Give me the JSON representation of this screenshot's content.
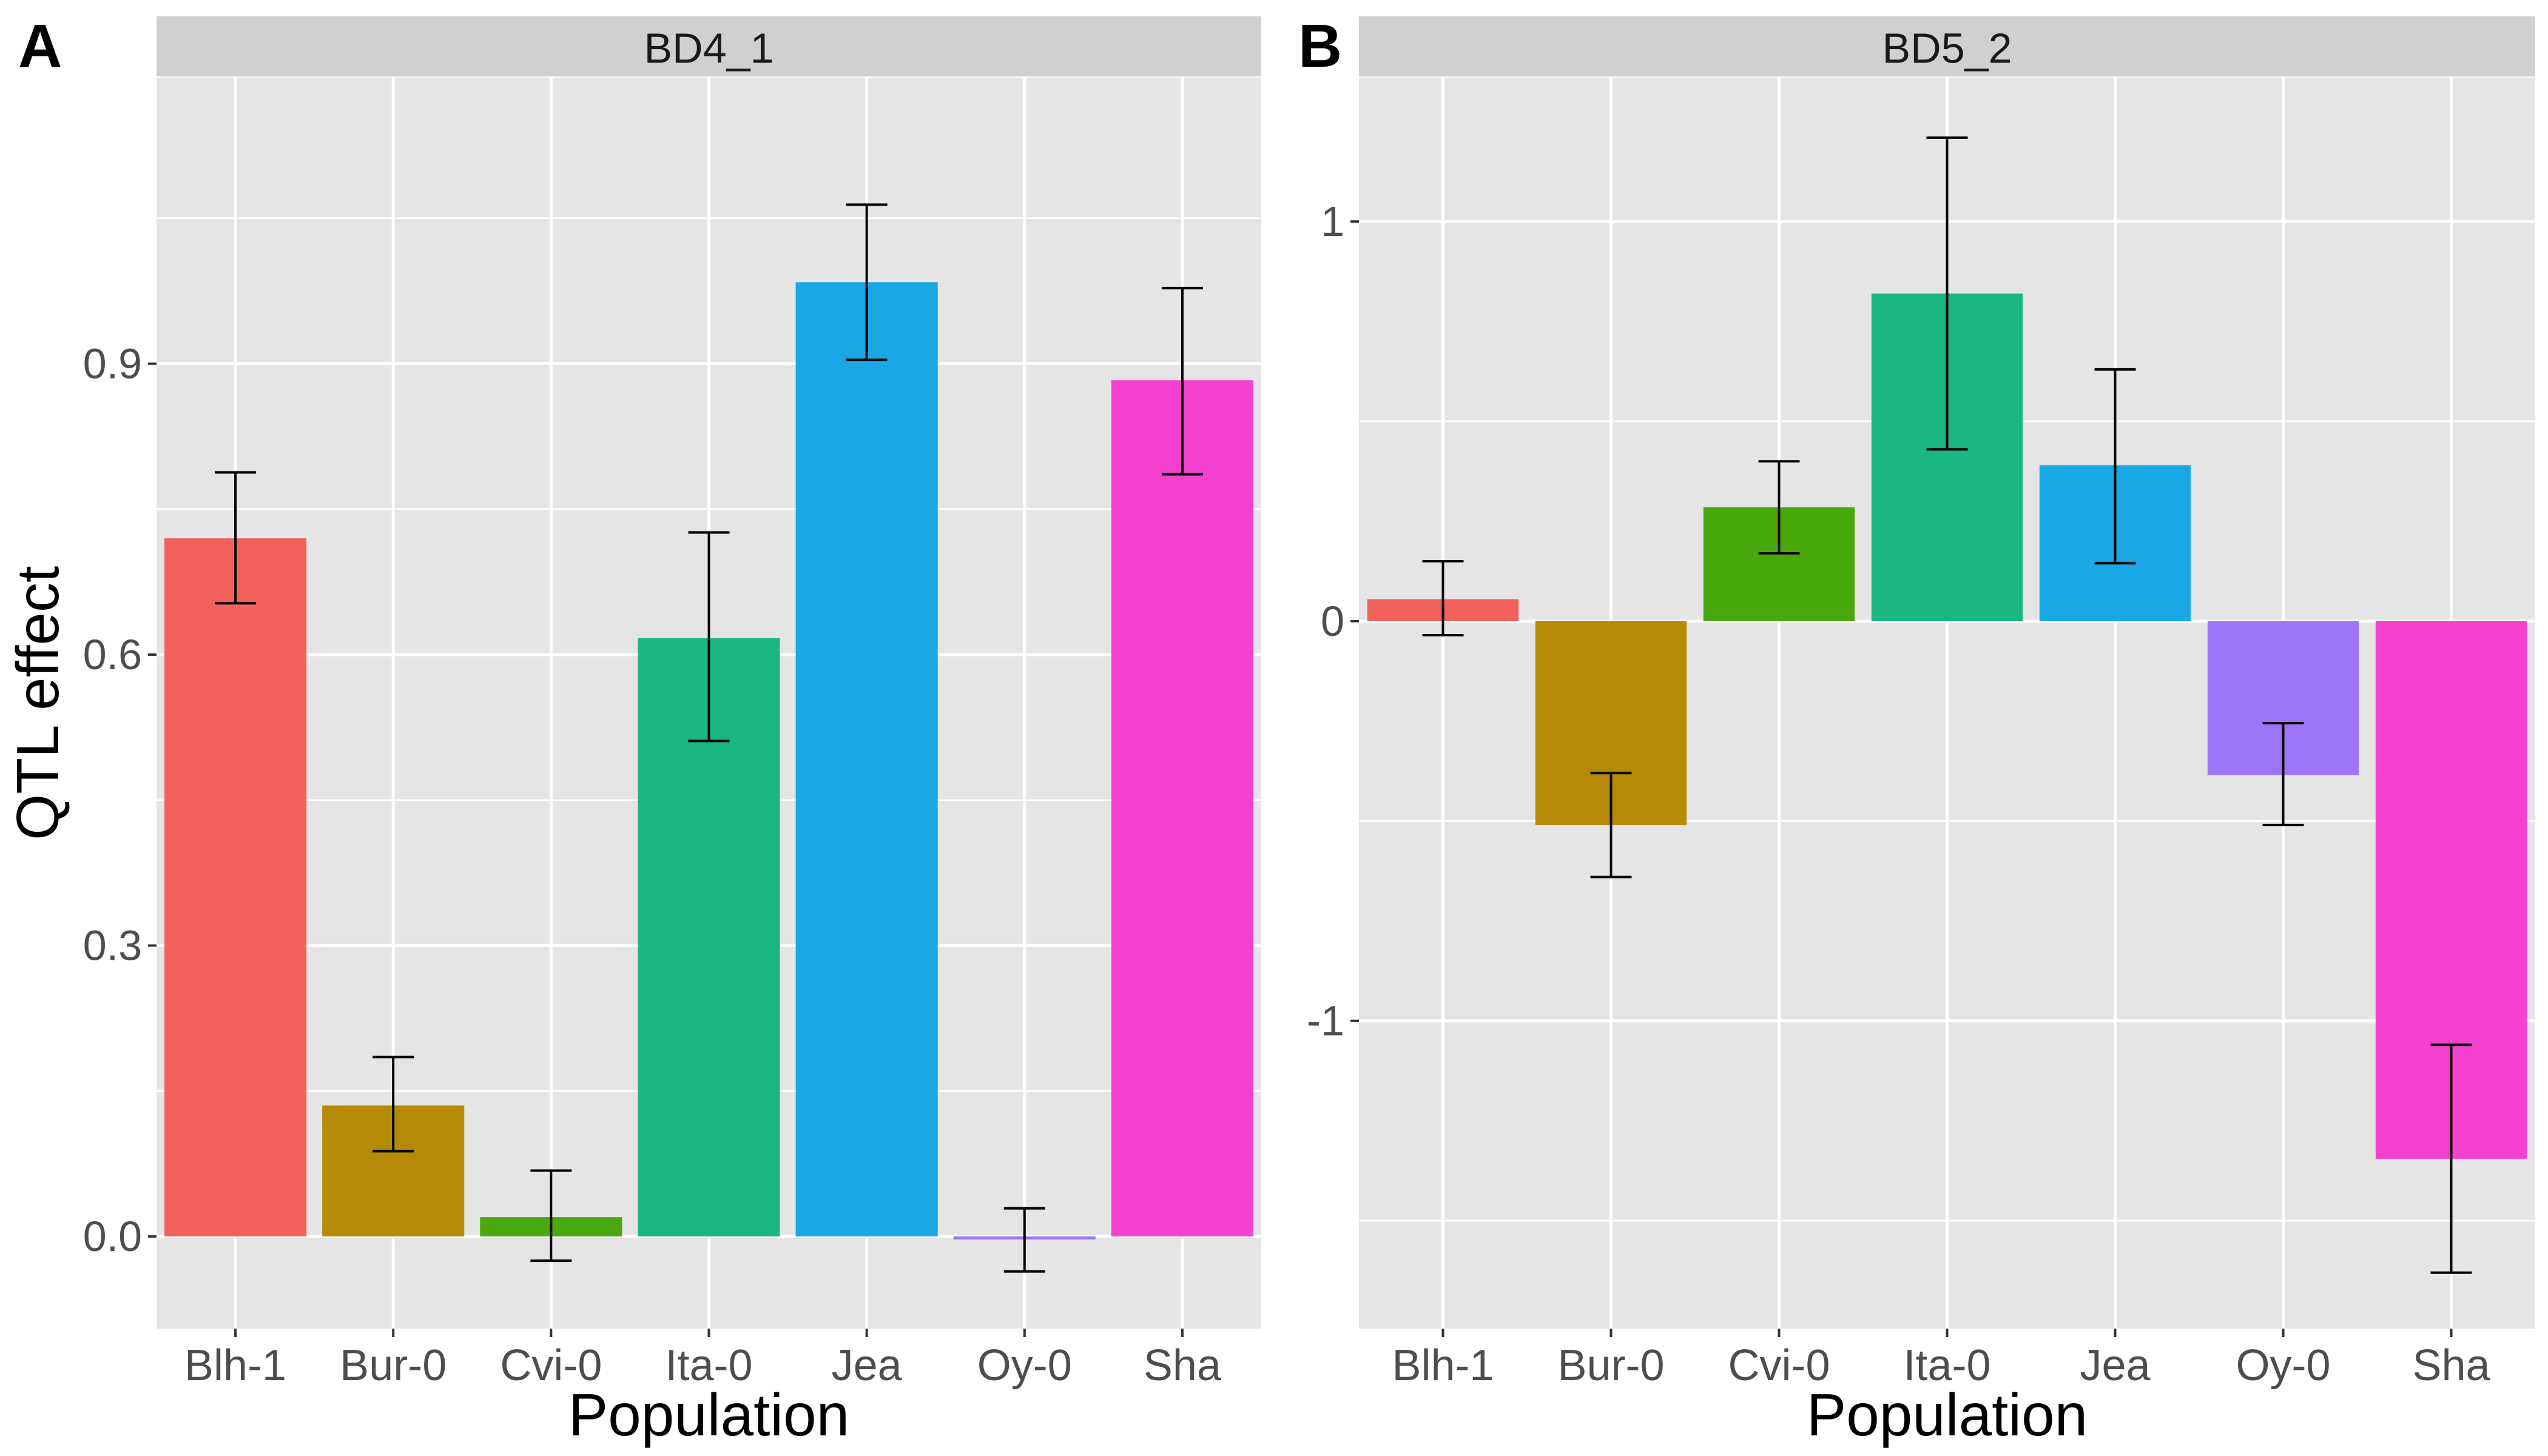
{
  "chart_data": [
    {
      "type": "bar",
      "panel_label": "A",
      "title": "BD4_1",
      "xlabel": "Population",
      "ylabel": "QTL effect",
      "ylim": [
        -0.095,
        1.195
      ],
      "yticks": [
        0.0,
        0.3,
        0.6,
        0.9
      ],
      "ytick_labels": [
        "0.0",
        "0.3",
        "0.6",
        "0.9"
      ],
      "categories": [
        "Blh-1",
        "Bur-0",
        "Cvi-0",
        "Ita-0",
        "Jea",
        "Oy-0",
        "Sha"
      ],
      "values": [
        0.72,
        0.135,
        0.02,
        0.617,
        0.984,
        -0.002,
        0.883
      ],
      "error_low": [
        0.653,
        0.088,
        -0.025,
        0.511,
        0.904,
        -0.036,
        0.786
      ],
      "error_high": [
        0.788,
        0.185,
        0.068,
        0.726,
        1.064,
        0.029,
        0.978
      ],
      "grid": true,
      "legend": "none"
    },
    {
      "type": "bar",
      "panel_label": "B",
      "title": "BD5_2",
      "xlabel": "Population",
      "ylabel": "",
      "ylim": [
        -1.77,
        1.36
      ],
      "yticks": [
        -1,
        0,
        1
      ],
      "ytick_labels": [
        "-1",
        "0",
        "1"
      ],
      "categories": [
        "Blh-1",
        "Bur-0",
        "Cvi-0",
        "Ita-0",
        "Jea",
        "Oy-0",
        "Sha"
      ],
      "values": [
        0.055,
        -0.51,
        0.285,
        0.82,
        0.39,
        -0.385,
        -1.345
      ],
      "error_low": [
        -0.035,
        -0.64,
        0.17,
        0.43,
        0.145,
        -0.51,
        -1.63
      ],
      "error_high": [
        0.15,
        -0.38,
        0.4,
        1.21,
        0.63,
        -0.255,
        -1.06
      ],
      "grid": true,
      "legend": "none"
    }
  ],
  "colors": {
    "Blh-1": "#F2615B",
    "Bur-0": "#B58A06",
    "Cvi-0": "#48A80C",
    "Ita-0": "#1AB785",
    "Jea": "#19A7E5",
    "Oy-0": "#9E75F9",
    "Sha": "#F541CF",
    "panel_background": "#E5E5E5",
    "strip_background": "#D0D0D0",
    "grid_line": "#FFFFFF",
    "axis_text": "#4D4D4D"
  }
}
